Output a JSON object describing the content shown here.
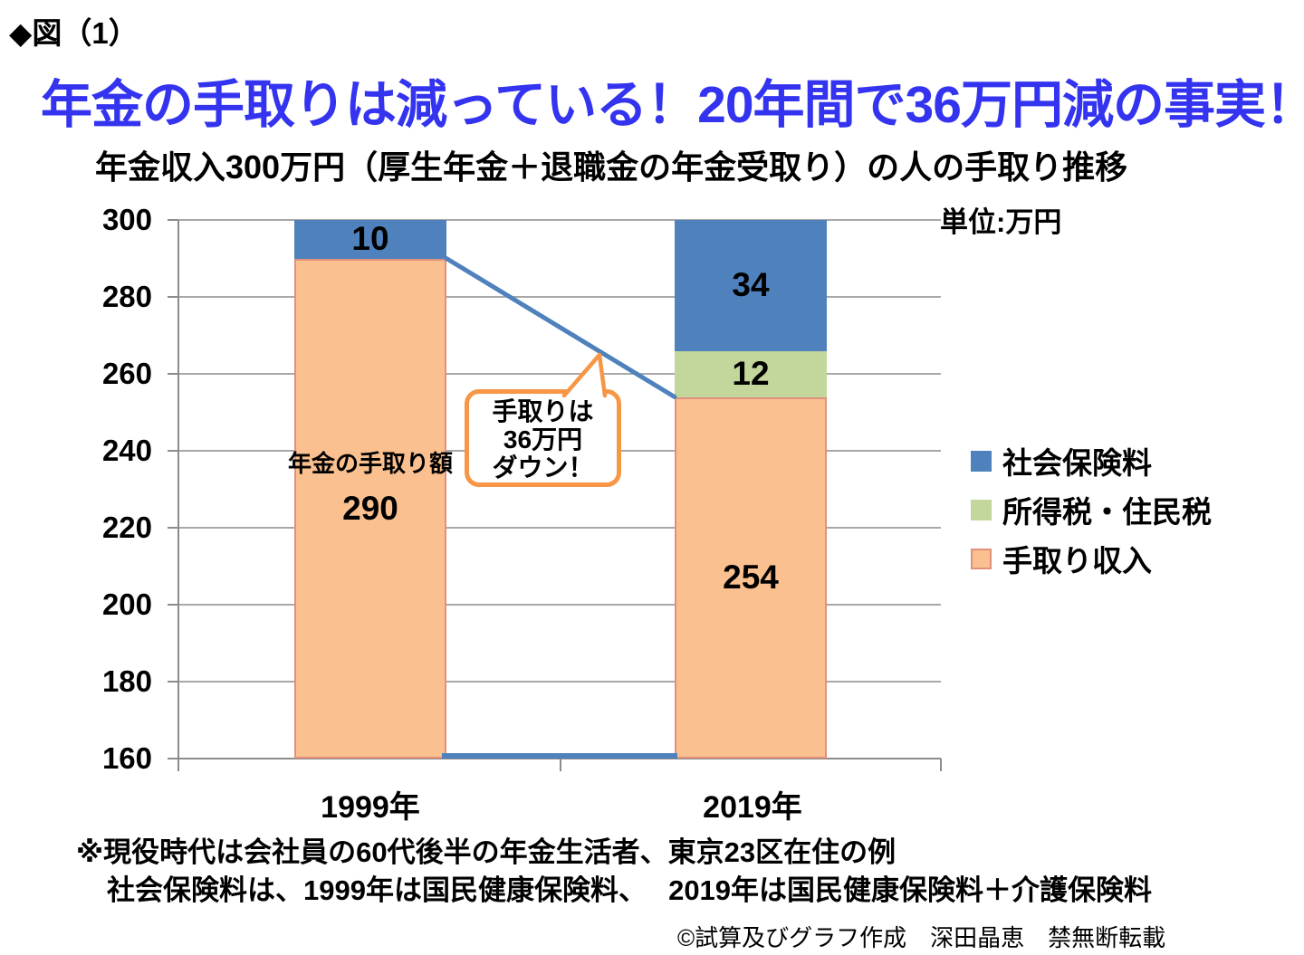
{
  "figure_label": "◆図（1）",
  "title": "年金の手取りは減っている！20年間で36万円減の事実！",
  "colors": {
    "title_blue": "#3333F0",
    "bar_blue": "#4F81BD",
    "bar_green": "#C3D69B",
    "bar_orange": "#FAC08F",
    "orange_border": "#E2907C",
    "callout_border": "#F79646",
    "trend_line": "#4F81BD",
    "gridline": "#A8A8A8"
  },
  "chart_data": {
    "type": "bar",
    "stacked": true,
    "title": "年金収入300万円（厚生年金＋退職金の年金受取り）の人の手取り推移",
    "unit_label": "単位:万円",
    "categories": [
      "1999年",
      "2019年"
    ],
    "series": [
      {
        "name": "手取り収入",
        "color": "#FAC08F",
        "border": "#E2907C",
        "values": [
          290,
          254
        ]
      },
      {
        "name": "所得税・住民税",
        "color": "#C3D69B",
        "border": null,
        "values": [
          0,
          12
        ]
      },
      {
        "name": "社会保険料",
        "color": "#4F81BD",
        "border": null,
        "values": [
          10,
          34
        ]
      }
    ],
    "ylim": [
      160,
      300
    ],
    "ytick_interval": 20,
    "yticks": [
      "300",
      "280",
      "260",
      "240",
      "220",
      "200",
      "180",
      "160"
    ],
    "grid": true,
    "legend_position": "right",
    "legend": [
      {
        "label": "社会保険料",
        "color": "#4F81BD"
      },
      {
        "label": "所得税・住民税",
        "color": "#C3D69B"
      },
      {
        "label": "手取り収入",
        "color": "#FAC08F"
      }
    ],
    "annotations": {
      "bar_note": "年金の手取り額",
      "callout_lines": [
        "手取りは",
        "36万円",
        "ダウン！"
      ],
      "trend_line": {
        "from_category": "1999年",
        "from_value": 290,
        "to_category": "2019年",
        "to_value": 254
      },
      "baseline_marker_value": 160
    }
  },
  "footnotes": [
    "※現役時代は会社員の60代後半の年金生活者、東京23区在住の例",
    "社会保険料は、1999年は国民健康保険料、　 2019年は国民健康保険料＋介護保険料"
  ],
  "credit": "©試算及びグラフ作成　深田晶恵　禁無断転載"
}
